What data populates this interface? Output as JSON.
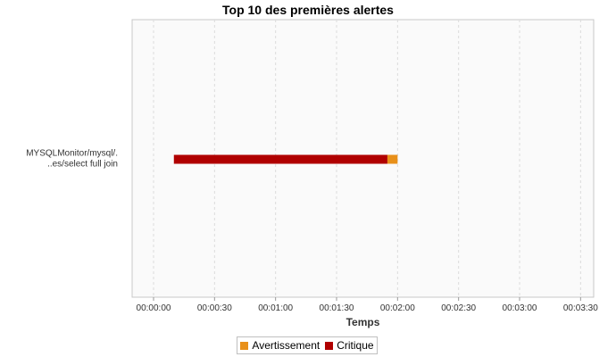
{
  "chart_data": {
    "type": "bar",
    "orientation": "horizontal",
    "stacked": true,
    "title": "Top 10 des premières alertes",
    "xlabel": "Temps",
    "ylabel": "",
    "xlim_seconds": [
      0,
      215
    ],
    "x_ticks": [
      "00:00:00",
      "00:00:30",
      "00:01:00",
      "00:01:30",
      "00:02:00",
      "00:02:30",
      "00:03:00",
      "00:03:30"
    ],
    "x_tick_values_seconds": [
      0,
      30,
      60,
      90,
      120,
      150,
      180,
      210
    ],
    "categories": [
      {
        "line1": "MYSQLMonitor/mysql/.",
        "line2": "..es/select full join"
      }
    ],
    "series": [
      {
        "name": "Critique",
        "color": "#b00000",
        "segments": [
          {
            "start_seconds": 10,
            "end_seconds": 115
          }
        ]
      },
      {
        "name": "Avertissement",
        "color": "#e8901a",
        "segments": [
          {
            "start_seconds": 115,
            "end_seconds": 120
          }
        ]
      }
    ],
    "grid": true,
    "legend_position": "bottom-center"
  },
  "legend": [
    {
      "label": "Avertissement",
      "color": "#e8901a"
    },
    {
      "label": "Critique",
      "color": "#b00000"
    }
  ]
}
